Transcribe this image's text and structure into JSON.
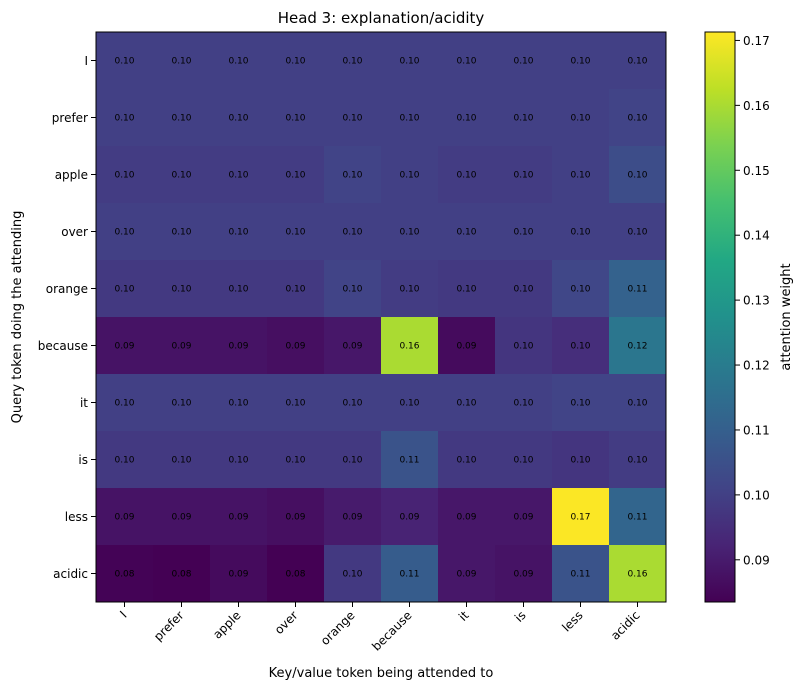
{
  "chart_data": {
    "type": "heatmap",
    "title": "Head 3: explanation/acidity",
    "xlabel": "Key/value token being attended to",
    "ylabel": "Query token doing the attending",
    "x_categories": [
      "I",
      "prefer",
      "apple",
      "over",
      "orange",
      "because",
      "it",
      "is",
      "less",
      "acidic"
    ],
    "y_categories": [
      "I",
      "prefer",
      "apple",
      "over",
      "orange",
      "because",
      "it",
      "is",
      "less",
      "acidic"
    ],
    "values": [
      [
        0.1,
        0.1,
        0.1,
        0.1,
        0.1,
        0.1,
        0.1,
        0.1,
        0.1,
        0.1
      ],
      [
        0.1,
        0.1,
        0.1,
        0.1,
        0.1,
        0.1,
        0.1,
        0.1,
        0.1,
        0.101
      ],
      [
        0.099,
        0.099,
        0.099,
        0.099,
        0.101,
        0.1,
        0.099,
        0.099,
        0.1,
        0.104
      ],
      [
        0.1,
        0.1,
        0.1,
        0.1,
        0.1,
        0.1,
        0.1,
        0.1,
        0.1,
        0.1
      ],
      [
        0.098,
        0.098,
        0.098,
        0.098,
        0.101,
        0.099,
        0.098,
        0.098,
        0.102,
        0.111
      ],
      [
        0.088,
        0.088,
        0.088,
        0.087,
        0.089,
        0.16,
        0.086,
        0.097,
        0.095,
        0.118
      ],
      [
        0.1,
        0.1,
        0.1,
        0.1,
        0.1,
        0.1,
        0.1,
        0.1,
        0.101,
        0.101
      ],
      [
        0.098,
        0.098,
        0.098,
        0.098,
        0.098,
        0.106,
        0.098,
        0.098,
        0.097,
        0.099
      ],
      [
        0.088,
        0.088,
        0.088,
        0.087,
        0.09,
        0.092,
        0.089,
        0.089,
        0.171,
        0.112
      ],
      [
        0.084,
        0.083,
        0.086,
        0.082,
        0.098,
        0.109,
        0.089,
        0.088,
        0.106,
        0.16
      ]
    ],
    "cell_labels": [
      [
        "0.10",
        "0.10",
        "0.10",
        "0.10",
        "0.10",
        "0.10",
        "0.10",
        "0.10",
        "0.10",
        "0.10"
      ],
      [
        "0.10",
        "0.10",
        "0.10",
        "0.10",
        "0.10",
        "0.10",
        "0.10",
        "0.10",
        "0.10",
        "0.10"
      ],
      [
        "0.10",
        "0.10",
        "0.10",
        "0.10",
        "0.10",
        "0.10",
        "0.10",
        "0.10",
        "0.10",
        "0.10"
      ],
      [
        "0.10",
        "0.10",
        "0.10",
        "0.10",
        "0.10",
        "0.10",
        "0.10",
        "0.10",
        "0.10",
        "0.10"
      ],
      [
        "0.10",
        "0.10",
        "0.10",
        "0.10",
        "0.10",
        "0.10",
        "0.10",
        "0.10",
        "0.10",
        "0.11"
      ],
      [
        "0.09",
        "0.09",
        "0.09",
        "0.09",
        "0.09",
        "0.16",
        "0.09",
        "0.10",
        "0.10",
        "0.12"
      ],
      [
        "0.10",
        "0.10",
        "0.10",
        "0.10",
        "0.10",
        "0.10",
        "0.10",
        "0.10",
        "0.10",
        "0.10"
      ],
      [
        "0.10",
        "0.10",
        "0.10",
        "0.10",
        "0.10",
        "0.11",
        "0.10",
        "0.10",
        "0.10",
        "0.10"
      ],
      [
        "0.09",
        "0.09",
        "0.09",
        "0.09",
        "0.09",
        "0.09",
        "0.09",
        "0.09",
        "0.17",
        "0.11"
      ],
      [
        "0.08",
        "0.08",
        "0.09",
        "0.08",
        "0.10",
        "0.11",
        "0.09",
        "0.09",
        "0.11",
        "0.16"
      ]
    ],
    "colorbar": {
      "label": "attention weight",
      "min": 0.0835,
      "max": 0.1713,
      "ticks": [
        0.09,
        0.1,
        0.11,
        0.12,
        0.13,
        0.14,
        0.15,
        0.16,
        0.17
      ],
      "tick_labels": [
        "0.09",
        "0.10",
        "0.11",
        "0.12",
        "0.13",
        "0.14",
        "0.15",
        "0.16",
        "0.17"
      ],
      "colormap": "viridis",
      "position": "right"
    },
    "grid": false
  }
}
